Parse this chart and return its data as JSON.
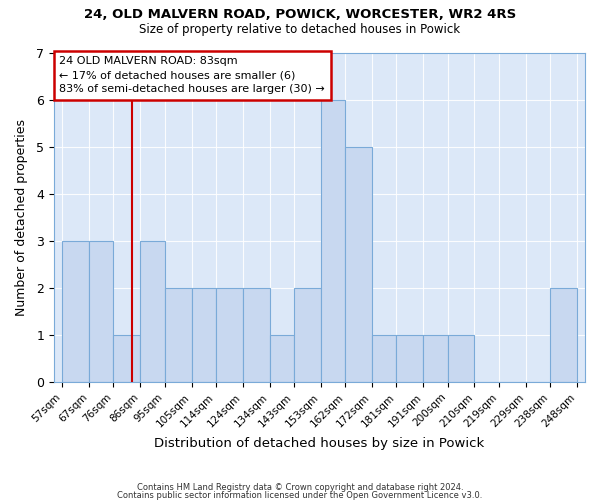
{
  "title1": "24, OLD MALVERN ROAD, POWICK, WORCESTER, WR2 4RS",
  "title2": "Size of property relative to detached houses in Powick",
  "xlabel": "Distribution of detached houses by size in Powick",
  "ylabel": "Number of detached properties",
  "bin_edges": [
    57,
    67,
    76,
    86,
    95,
    105,
    114,
    124,
    134,
    143,
    153,
    162,
    172,
    181,
    191,
    200,
    210,
    219,
    229,
    238,
    248
  ],
  "counts": [
    3,
    3,
    1,
    3,
    2,
    2,
    2,
    2,
    1,
    2,
    6,
    5,
    1,
    1,
    1,
    1,
    0,
    0,
    0,
    2
  ],
  "bar_color": "#c8d8f0",
  "bar_edge_color": "#7aaad8",
  "red_line_x": 83,
  "ylim": [
    0,
    7
  ],
  "yticks": [
    0,
    1,
    2,
    3,
    4,
    5,
    6,
    7
  ],
  "annotation_text": "24 OLD MALVERN ROAD: 83sqm\n← 17% of detached houses are smaller (6)\n83% of semi-detached houses are larger (30) →",
  "annotation_box_color": "#ffffff",
  "annotation_box_edge": "#cc0000",
  "footnote1": "Contains HM Land Registry data © Crown copyright and database right 2024.",
  "footnote2": "Contains public sector information licensed under the Open Government Licence v3.0.",
  "background_color": "#dce8f8"
}
